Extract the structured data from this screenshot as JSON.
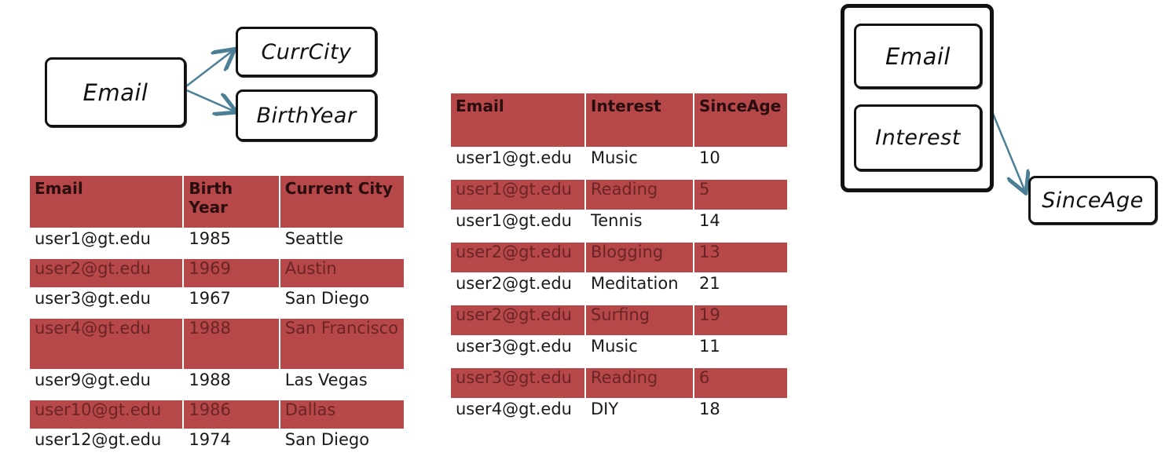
{
  "diagram1": {
    "source": "Email",
    "targets": [
      "CurrCity",
      "BirthYear"
    ]
  },
  "diagram2": {
    "group": [
      "Email",
      "Interest"
    ],
    "target": "SinceAge"
  },
  "table1": {
    "headers": [
      "Email",
      "Birth Year",
      "Current City"
    ],
    "rows": [
      [
        "user1@gt.edu",
        "1985",
        "Seattle"
      ],
      [
        "user2@gt.edu",
        "1969",
        "Austin"
      ],
      [
        "user3@gt.edu",
        "1967",
        "San Diego"
      ],
      [
        "user4@gt.edu",
        "1988",
        "San Francisco"
      ],
      [
        "user9@gt.edu",
        "1988",
        "Las Vegas"
      ],
      [
        "user10@gt.edu",
        "1986",
        "Dallas"
      ],
      [
        "user12@gt.edu",
        "1974",
        "San Diego"
      ]
    ]
  },
  "table2": {
    "headers": [
      "Email",
      "Interest",
      "SinceAge"
    ],
    "rows": [
      [
        "user1@gt.edu",
        "Music",
        "10"
      ],
      [
        "user1@gt.edu",
        "Reading",
        "5"
      ],
      [
        "user1@gt.edu",
        "Tennis",
        "14"
      ],
      [
        "user2@gt.edu",
        "Blogging",
        "13"
      ],
      [
        "user2@gt.edu",
        "Meditation",
        "21"
      ],
      [
        "user2@gt.edu",
        "Surfing",
        "19"
      ],
      [
        "user3@gt.edu",
        "Music",
        "11"
      ],
      [
        "user3@gt.edu",
        "Reading",
        "6"
      ],
      [
        "user4@gt.edu",
        "DIY",
        "18"
      ]
    ]
  },
  "colors": {
    "shaded_row": "#b6484a",
    "arrow": "#4a7f95"
  }
}
